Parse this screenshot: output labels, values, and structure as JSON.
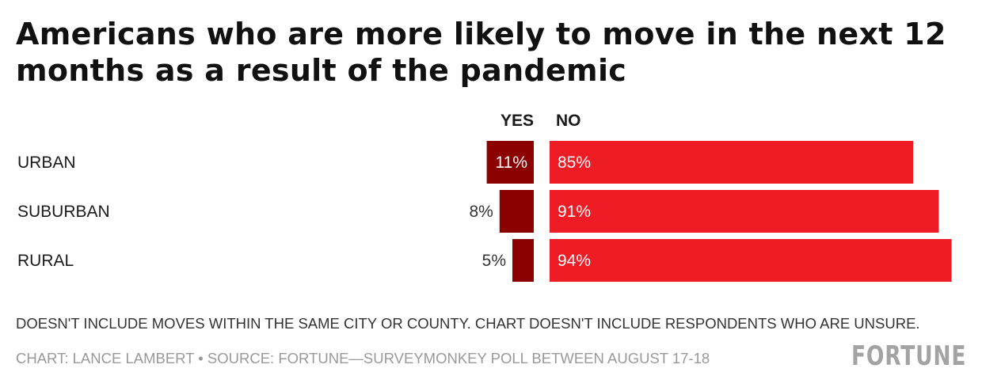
{
  "title": "Americans who are more likely to move in the next 12 months as a result of the pandemic",
  "note": "DOESN'T INCLUDE MOVES WITHIN THE SAME CITY OR COUNTY. CHART DOESN'T INCLUDE RESPONDENTS WHO ARE UNSURE.",
  "source": "CHART: LANCE LAMBERT • SOURCE: FORTUNE—SURVEYMONKEY POLL BETWEEN AUGUST 17-18",
  "logo": "FORTUNE",
  "colors": {
    "yes": "#8b0000",
    "no": "#ee1c25"
  },
  "chart_data": {
    "type": "bar",
    "orientation": "horizontal",
    "categories": [
      "URBAN",
      "SUBURBAN",
      "RURAL"
    ],
    "series": [
      {
        "name": "YES",
        "values": [
          11,
          8,
          5
        ],
        "labels": [
          "11%",
          "8%",
          "5%"
        ]
      },
      {
        "name": "NO",
        "values": [
          85,
          91,
          94
        ],
        "labels": [
          "85%",
          "91%",
          "94%"
        ]
      }
    ],
    "unit": "%",
    "xlim": [
      0,
      100
    ],
    "grid": false
  }
}
